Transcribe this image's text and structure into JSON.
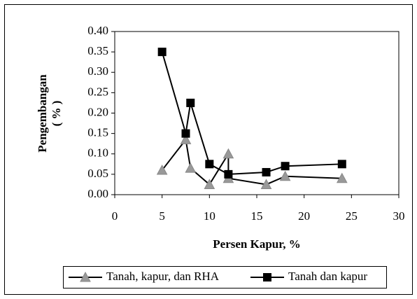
{
  "chart_data": {
    "type": "line",
    "xlabel": "Persen Kapur, %",
    "ylabel": [
      "Pengembangan",
      "( % )"
    ],
    "xlim": [
      0,
      30
    ],
    "xticks": [
      0,
      5,
      10,
      15,
      20,
      25,
      30
    ],
    "ylim": [
      0,
      0.4
    ],
    "yticks": [
      {
        "value": 0,
        "label": "0.00"
      },
      {
        "value": 0.05,
        "label": "0.05"
      },
      {
        "value": 0.1,
        "label": "0.10"
      },
      {
        "value": 0.15,
        "label": "0.15"
      },
      {
        "value": 0.2,
        "label": "0.20"
      },
      {
        "value": 0.25,
        "label": "0.25"
      },
      {
        "value": 0.3,
        "label": "0.30"
      },
      {
        "value": 0.35,
        "label": "0.35"
      },
      {
        "value": 0.4,
        "label": "0.40"
      }
    ],
    "legend": "bottom",
    "series": [
      {
        "name": "Tanah, kapur, dan RHA",
        "color": "#999999",
        "marker": "triangle",
        "x": [
          5,
          7.5,
          8,
          10,
          12,
          12,
          16,
          18,
          24
        ],
        "values": [
          0.06,
          0.135,
          0.065,
          0.025,
          0.1,
          0.04,
          0.025,
          0.045,
          0.04
        ]
      },
      {
        "name": "Tanah dan kapur",
        "color": "#000000",
        "marker": "square",
        "x": [
          5,
          7.5,
          8,
          10,
          12,
          16,
          18,
          24
        ],
        "values": [
          0.35,
          0.15,
          0.225,
          0.075,
          0.05,
          0.055,
          0.07,
          0.075
        ]
      }
    ]
  }
}
